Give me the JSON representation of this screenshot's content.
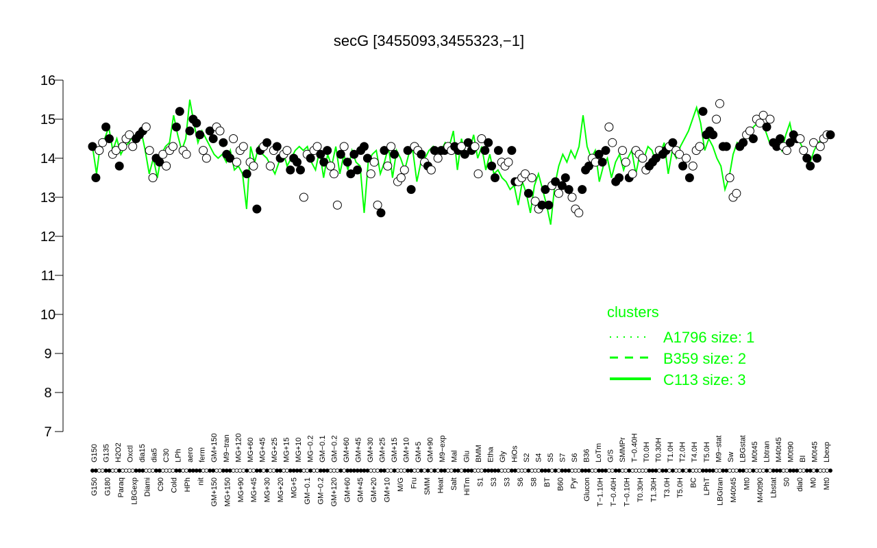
{
  "chart_data": {
    "type": "line",
    "title": "secG [3455093,3455323,−1]",
    "ylim": [
      7,
      16
    ],
    "yticks": [
      "7",
      "8",
      "9",
      "10",
      "11",
      "12",
      "13",
      "14",
      "15",
      "16"
    ],
    "xlabels_top": [
      "G150",
      "G135",
      "H2O2",
      "Oxctl",
      "dia15",
      "dia5",
      "C30",
      "LPh",
      "aero",
      "ferm",
      "GM+150",
      "M9−tran",
      "MG+120",
      "MG+60",
      "MG+45",
      "MG+25",
      "MG+15",
      "MG+10",
      "MG−0.2",
      "GM−0.1",
      "GM−0.2",
      "GM+60",
      "GM+45",
      "GM+30",
      "GM+25",
      "GM+15",
      "GM+10",
      "GM+5",
      "GM+90",
      "M9−exp",
      "Mal",
      "Glu",
      "BMM",
      "Etha",
      "Gly",
      "HiOs",
      "S2",
      "S4",
      "S5",
      "S7",
      "S6",
      "B36",
      "LoTm",
      "G/S",
      "SMMPr",
      "T−0.40H",
      "T0.0H",
      "T0.30H",
      "T1.0H",
      "T2.0H",
      "T4.0H",
      "T5.0H",
      "M9−stat",
      "Sw",
      "LBGstat",
      "M0t45",
      "Lbtran",
      "M40t45",
      "M0t90",
      "BI",
      "M0t45",
      "Lbexp"
    ],
    "xlabels_bottom": [
      "G150",
      "G180",
      "Paraq",
      "LBGexp",
      "Diami",
      "C90",
      "Cold",
      "HPh",
      "nit",
      "GM+150",
      "MG+150",
      "MG+90",
      "MG+45",
      "MG+30",
      "MG+20",
      "MG+5",
      "GM−0.1",
      "GM−0.2",
      "GM+120",
      "GM+60",
      "GM+45",
      "GM+20",
      "GM+10",
      "M/G",
      "Fru",
      "SMM",
      "Heat",
      "Salt",
      "HiTm",
      "S1",
      "S3",
      "S3",
      "S6",
      "S8",
      "BT",
      "B60",
      "Pyr",
      "Glucon",
      "T−1.10H",
      "T−0.40H",
      "T−0.10H",
      "T0.30H",
      "T1.30H",
      "T3.0H",
      "T5.0H",
      "BC",
      "LPhT",
      "LBGtran",
      "M40t45",
      "Mt0",
      "M40t90",
      "Lbstat",
      "S0",
      "dia0",
      "M0",
      "Mt0"
    ],
    "series_green": [
      14.3,
      13.6,
      14.4,
      14.5,
      14.8,
      14.2,
      14.5,
      14.1,
      14.3,
      14.4,
      14.6,
      14.5,
      14.7,
      14.2,
      13.6,
      14.0,
      13.5,
      14.1,
      14.3,
      14.4,
      15.1,
      14.6,
      14.2,
      14.5,
      15.5,
      14.9,
      14.4,
      14.7,
      14.5,
      14.3,
      14.1,
      14.0,
      14.1,
      13.9,
      14.2,
      13.7,
      13.8,
      13.6,
      12.7,
      14.3,
      13.9,
      14.3,
      14.1,
      14.0,
      13.8,
      13.6,
      13.9,
      14.2,
      13.8,
      14.0,
      14.2,
      14.3,
      14.2,
      14.3,
      13.9,
      13.7,
      14.2,
      13.5,
      14.1,
      13.8,
      14.3,
      13.6,
      14.1,
      13.7,
      14.2,
      13.9,
      13.8,
      12.6,
      13.9,
      14.1,
      14.2,
      13.6,
      13.9,
      14.3,
      13.5,
      14.2,
      14.0,
      13.7,
      14.1,
      14.2,
      13.4,
      13.9,
      14.0,
      14.2,
      14.3,
      14.0,
      14.2,
      14.4,
      14.3,
      14.7,
      13.7,
      14.5,
      14.1,
      14.2,
      14.6,
      14.0,
      14.3,
      13.7,
      14.1,
      13.6,
      13.7,
      13.5,
      13.4,
      13.2,
      13.3,
      12.8,
      13.4,
      13.1,
      12.6,
      13.3,
      13.6,
      13.2,
      12.8,
      12.3,
      13.3,
      13.8,
      14.1,
      13.9,
      14.2,
      14.0,
      14.3,
      15.1,
      14.3,
      14.0,
      14.2,
      13.4,
      13.8,
      14.0,
      13.5,
      13.9,
      14.1,
      13.7,
      14.0,
      14.2,
      13.6,
      14.1,
      14.0,
      14.3,
      14.2,
      13.9,
      14.1,
      14.4,
      13.6,
      14.2,
      14.0,
      14.3,
      14.5,
      14.7,
      15.0,
      15.3,
      14.9,
      14.2,
      14.5,
      14.3,
      14.0,
      13.8,
      13.2,
      13.5,
      14.1,
      14.4,
      14.3,
      14.6,
      14.5,
      14.8,
      14.9,
      15.0,
      14.7,
      14.4,
      14.3,
      14.5,
      14.2,
      14.6,
      14.9,
      14.4,
      14.5,
      14.3,
      14.1,
      13.9,
      14.2,
      14.4,
      14.5,
      14.6,
      14.5
    ],
    "points": [
      [
        14.3,
        1
      ],
      [
        13.5,
        1
      ],
      [
        14.2,
        0
      ],
      [
        14.4,
        0
      ],
      [
        14.8,
        1
      ],
      [
        14.5,
        1
      ],
      [
        14.1,
        0
      ],
      [
        14.2,
        0
      ],
      [
        13.8,
        1
      ],
      [
        14.3,
        0
      ],
      [
        14.5,
        0
      ],
      [
        14.6,
        0
      ],
      [
        14.3,
        0
      ],
      [
        14.5,
        1
      ],
      [
        14.6,
        1
      ],
      [
        14.7,
        1
      ],
      [
        14.8,
        0
      ],
      [
        14.2,
        0
      ],
      [
        13.5,
        0
      ],
      [
        14.0,
        1
      ],
      [
        13.9,
        1
      ],
      [
        14.1,
        0
      ],
      [
        13.8,
        0
      ],
      [
        14.2,
        0
      ],
      [
        14.3,
        0
      ],
      [
        14.8,
        1
      ],
      [
        15.2,
        1
      ],
      [
        14.2,
        0
      ],
      [
        14.1,
        0
      ],
      [
        14.7,
        1
      ],
      [
        15.0,
        1
      ],
      [
        14.9,
        1
      ],
      [
        14.6,
        1
      ],
      [
        14.2,
        0
      ],
      [
        14.0,
        0
      ],
      [
        14.7,
        1
      ],
      [
        14.5,
        1
      ],
      [
        14.8,
        0
      ],
      [
        14.7,
        0
      ],
      [
        14.4,
        1
      ],
      [
        14.1,
        1
      ],
      [
        14.0,
        1
      ],
      [
        14.5,
        0
      ],
      [
        13.9,
        0
      ],
      [
        14.2,
        0
      ],
      [
        14.3,
        0
      ],
      [
        13.6,
        1
      ],
      [
        13.9,
        0
      ],
      [
        13.8,
        0
      ],
      [
        12.7,
        1
      ],
      [
        14.2,
        1
      ],
      [
        14.3,
        0
      ],
      [
        14.4,
        1
      ],
      [
        13.8,
        0
      ],
      [
        14.2,
        0
      ],
      [
        14.3,
        1
      ],
      [
        14.0,
        1
      ],
      [
        14.1,
        0
      ],
      [
        14.2,
        0
      ],
      [
        13.7,
        1
      ],
      [
        14.0,
        1
      ],
      [
        13.9,
        1
      ],
      [
        13.7,
        1
      ],
      [
        13.0,
        0
      ],
      [
        14.1,
        0
      ],
      [
        14.0,
        1
      ],
      [
        14.2,
        0
      ],
      [
        14.3,
        0
      ],
      [
        14.1,
        1
      ],
      [
        13.9,
        1
      ],
      [
        14.2,
        1
      ],
      [
        13.8,
        0
      ],
      [
        13.6,
        0
      ],
      [
        12.8,
        0
      ],
      [
        14.1,
        1
      ],
      [
        14.3,
        0
      ],
      [
        13.9,
        1
      ],
      [
        13.6,
        1
      ],
      [
        14.1,
        1
      ],
      [
        13.7,
        1
      ],
      [
        14.2,
        1
      ],
      [
        14.3,
        1
      ],
      [
        14.0,
        1
      ],
      [
        13.6,
        0
      ],
      [
        13.9,
        0
      ],
      [
        12.8,
        0
      ],
      [
        12.6,
        1
      ],
      [
        14.2,
        1
      ],
      [
        13.8,
        0
      ],
      [
        14.3,
        0
      ],
      [
        14.1,
        1
      ],
      [
        13.4,
        0
      ],
      [
        13.5,
        0
      ],
      [
        13.7,
        0
      ],
      [
        14.2,
        1
      ],
      [
        13.2,
        1
      ],
      [
        14.3,
        0
      ],
      [
        14.2,
        0
      ],
      [
        14.1,
        1
      ],
      [
        13.9,
        0
      ],
      [
        13.8,
        1
      ],
      [
        13.7,
        0
      ],
      [
        14.2,
        1
      ],
      [
        14.0,
        0
      ],
      [
        14.2,
        1
      ],
      [
        14.2,
        1
      ],
      [
        14.3,
        0
      ],
      [
        14.2,
        0
      ],
      [
        14.3,
        1
      ],
      [
        14.2,
        1
      ],
      [
        14.3,
        0
      ],
      [
        14.1,
        1
      ],
      [
        14.4,
        1
      ],
      [
        14.2,
        1
      ],
      [
        14.3,
        0
      ],
      [
        13.6,
        0
      ],
      [
        14.5,
        0
      ],
      [
        14.2,
        1
      ],
      [
        14.4,
        1
      ],
      [
        13.8,
        1
      ],
      [
        13.5,
        1
      ],
      [
        14.2,
        1
      ],
      [
        13.9,
        0
      ],
      [
        13.8,
        0
      ],
      [
        13.9,
        0
      ],
      [
        14.2,
        1
      ],
      [
        13.4,
        1
      ],
      [
        13.4,
        0
      ],
      [
        13.5,
        0
      ],
      [
        13.6,
        0
      ],
      [
        13.1,
        1
      ],
      [
        13.5,
        0
      ],
      [
        12.9,
        0
      ],
      [
        12.7,
        0
      ],
      [
        12.8,
        1
      ],
      [
        13.2,
        1
      ],
      [
        12.8,
        1
      ],
      [
        13.3,
        0
      ],
      [
        13.4,
        1
      ],
      [
        13.1,
        0
      ],
      [
        13.3,
        1
      ],
      [
        13.5,
        1
      ],
      [
        13.2,
        1
      ],
      [
        13.0,
        0
      ],
      [
        12.7,
        0
      ],
      [
        12.6,
        0
      ],
      [
        13.2,
        1
      ],
      [
        13.7,
        1
      ],
      [
        13.8,
        1
      ],
      [
        14.0,
        0
      ],
      [
        13.9,
        0
      ],
      [
        14.1,
        1
      ],
      [
        13.9,
        1
      ],
      [
        14.2,
        1
      ],
      [
        14.8,
        0
      ],
      [
        14.4,
        0
      ],
      [
        13.4,
        1
      ],
      [
        13.5,
        1
      ],
      [
        14.2,
        0
      ],
      [
        13.9,
        0
      ],
      [
        13.5,
        1
      ],
      [
        13.6,
        0
      ],
      [
        14.2,
        0
      ],
      [
        14.1,
        0
      ],
      [
        14.0,
        0
      ],
      [
        13.7,
        0
      ],
      [
        13.8,
        1
      ],
      [
        13.9,
        1
      ],
      [
        14.0,
        1
      ],
      [
        14.2,
        0
      ],
      [
        14.1,
        1
      ],
      [
        14.2,
        1
      ],
      [
        14.3,
        0
      ],
      [
        14.4,
        1
      ],
      [
        14.2,
        0
      ],
      [
        14.1,
        0
      ],
      [
        13.8,
        1
      ],
      [
        14.0,
        0
      ],
      [
        13.5,
        1
      ],
      [
        13.8,
        0
      ],
      [
        14.2,
        0
      ],
      [
        14.3,
        0
      ],
      [
        15.2,
        1
      ],
      [
        14.6,
        1
      ],
      [
        14.7,
        1
      ],
      [
        14.6,
        1
      ],
      [
        15.0,
        0
      ],
      [
        15.4,
        0
      ],
      [
        14.3,
        1
      ],
      [
        14.3,
        1
      ],
      [
        13.5,
        0
      ],
      [
        13.0,
        0
      ],
      [
        13.1,
        0
      ],
      [
        14.3,
        1
      ],
      [
        14.4,
        1
      ],
      [
        14.6,
        0
      ],
      [
        14.7,
        0
      ],
      [
        14.5,
        1
      ],
      [
        15.0,
        0
      ],
      [
        14.9,
        0
      ],
      [
        15.1,
        0
      ],
      [
        14.8,
        1
      ],
      [
        15.0,
        0
      ],
      [
        14.4,
        1
      ],
      [
        14.3,
        1
      ],
      [
        14.5,
        1
      ],
      [
        14.3,
        0
      ],
      [
        14.2,
        0
      ],
      [
        14.4,
        1
      ],
      [
        14.6,
        1
      ],
      [
        14.5,
        1
      ],
      [
        14.5,
        0
      ],
      [
        14.2,
        0
      ],
      [
        14.0,
        1
      ],
      [
        13.8,
        1
      ],
      [
        14.4,
        0
      ],
      [
        14.0,
        1
      ],
      [
        14.3,
        0
      ],
      [
        14.5,
        0
      ],
      [
        14.6,
        0
      ],
      [
        14.6,
        1
      ]
    ],
    "legend": {
      "title": "clusters",
      "entries": [
        {
          "label": "A1796 size: 1",
          "style": "dotted"
        },
        {
          "label": "B359 size: 2",
          "style": "dashed"
        },
        {
          "label": "C113 size: 3",
          "style": "solid"
        }
      ],
      "position": "bottom-right",
      "color": "#00ff00"
    },
    "grid": false
  }
}
